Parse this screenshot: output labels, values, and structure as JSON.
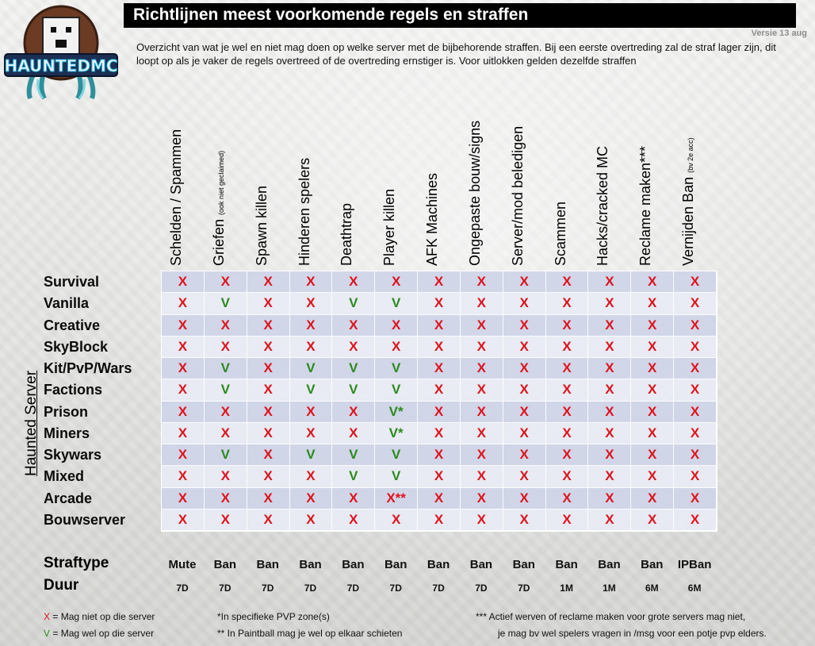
{
  "title": "Richtlijnen meest voorkomende regels en straffen",
  "version": "Versie 13 aug",
  "intro": "Overzicht van wat je wel en niet mag doen op welke server met de bijbehorende straffen. Bij een eerste overtreding zal de straf lager zijn, dit loopt op als je vaker de regels overtreed of de overtreding ernstiger is. Voor uitlokken gelden dezelfde straffen",
  "logo_text": "HAUNTEDMC",
  "side_label": "Haunted Server",
  "columns": [
    {
      "label": "Schelden / Spammen",
      "note": ""
    },
    {
      "label": "Griefen ",
      "note": "(ook niet geclaimed)"
    },
    {
      "label": "Spawn killen",
      "note": ""
    },
    {
      "label": "Hinderen spelers",
      "note": ""
    },
    {
      "label": "Deathtrap",
      "note": ""
    },
    {
      "label": "Player killen",
      "note": ""
    },
    {
      "label": "AFK Machines",
      "note": ""
    },
    {
      "label": "Ongepaste bouw/signs",
      "note": ""
    },
    {
      "label": "Server/mod beledigen",
      "note": ""
    },
    {
      "label": "Scammen",
      "note": ""
    },
    {
      "label": "Hacks/cracked MC",
      "note": ""
    },
    {
      "label": "Reclame maken***",
      "note": ""
    },
    {
      "label": "Vernijden Ban ",
      "note": "(bv 2e acc)"
    }
  ],
  "rows": [
    {
      "server": "Survival",
      "marks": [
        "X",
        "X",
        "X",
        "X",
        "X",
        "X",
        "X",
        "X",
        "X",
        "X",
        "X",
        "X",
        "X"
      ]
    },
    {
      "server": "Vanilla",
      "marks": [
        "X",
        "V",
        "X",
        "X",
        "V",
        "V",
        "X",
        "X",
        "X",
        "X",
        "X",
        "X",
        "X"
      ]
    },
    {
      "server": "Creative",
      "marks": [
        "X",
        "X",
        "X",
        "X",
        "X",
        "X",
        "X",
        "X",
        "X",
        "X",
        "X",
        "X",
        "X"
      ]
    },
    {
      "server": "SkyBlock",
      "marks": [
        "X",
        "X",
        "X",
        "X",
        "X",
        "X",
        "X",
        "X",
        "X",
        "X",
        "X",
        "X",
        "X"
      ]
    },
    {
      "server": "Kit/PvP/Wars",
      "marks": [
        "X",
        "V",
        "X",
        "V",
        "V",
        "V",
        "X",
        "X",
        "X",
        "X",
        "X",
        "X",
        "X"
      ]
    },
    {
      "server": "Factions",
      "marks": [
        "X",
        "V",
        "X",
        "V",
        "V",
        "V",
        "X",
        "X",
        "X",
        "X",
        "X",
        "X",
        "X"
      ]
    },
    {
      "server": "Prison",
      "marks": [
        "X",
        "X",
        "X",
        "X",
        "X",
        "V*",
        "X",
        "X",
        "X",
        "X",
        "X",
        "X",
        "X"
      ]
    },
    {
      "server": "Miners",
      "marks": [
        "X",
        "X",
        "X",
        "X",
        "X",
        "V*",
        "X",
        "X",
        "X",
        "X",
        "X",
        "X",
        "X"
      ]
    },
    {
      "server": "Skywars",
      "marks": [
        "X",
        "V",
        "X",
        "V",
        "V",
        "V",
        "X",
        "X",
        "X",
        "X",
        "X",
        "X",
        "X"
      ]
    },
    {
      "server": "Mixed",
      "marks": [
        "X",
        "X",
        "X",
        "X",
        "V",
        "V",
        "X",
        "X",
        "X",
        "X",
        "X",
        "X",
        "X"
      ]
    },
    {
      "server": "Arcade",
      "marks": [
        "X",
        "X",
        "X",
        "X",
        "X",
        "X**",
        "X",
        "X",
        "X",
        "X",
        "X",
        "X",
        "X"
      ]
    },
    {
      "server": "Bouwserver",
      "marks": [
        "X",
        "X",
        "X",
        "X",
        "X",
        "X",
        "X",
        "X",
        "X",
        "X",
        "X",
        "X",
        "X"
      ]
    }
  ],
  "straftype_label": "Straftype",
  "duur_label": "Duur",
  "straftype": [
    "Mute",
    "Ban",
    "Ban",
    "Ban",
    "Ban",
    "Ban",
    "Ban",
    "Ban",
    "Ban",
    "Ban",
    "Ban",
    "Ban",
    "IPBan"
  ],
  "duur": [
    "7D",
    "7D",
    "7D",
    "7D",
    "7D",
    "7D",
    "7D",
    "7D",
    "7D",
    "1M",
    "1M",
    "6M",
    "6M"
  ],
  "legend": {
    "x_mark": "X",
    "x_text": " = Mag niet op die server",
    "v_mark": "V",
    "v_text": " = Mag wel op die server",
    "note1": "*In specifieke PVP zone(s)",
    "note2": "** In Paintball mag je wel op elkaar schieten",
    "note3a": "*** Actief werven of reclame maken voor grote servers mag niet,",
    "note3b": "je mag bv wel spelers vragen in /msg voor een potje pvp elders."
  },
  "colors": {
    "no": "#e0121b",
    "yes": "#2b8a1c",
    "row_a": "#ced4e8",
    "row_b": "#e8ebf4"
  }
}
